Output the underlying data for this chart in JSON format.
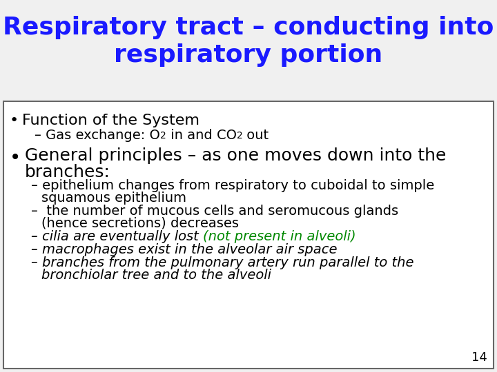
{
  "title_line1": "Respiratory tract – conducting into",
  "title_line2": "respiratory portion",
  "title_color": "#1a1aff",
  "title_fontsize": 26,
  "bg_color": "#f0f0f0",
  "box_bg_color": "#ffffff",
  "box_border_color": "#666666",
  "slide_number": "14",
  "bullet1_text": "Function of the System",
  "bullet1_fontsize": 16,
  "sub1_text": "– Gas exchange: O",
  "sub1_2": "2",
  "sub1_3": " in and CO",
  "sub1_4": "2",
  "sub1_5": " out",
  "sub_fontsize": 14,
  "sub_sub_fontsize": 10,
  "bullet2_line1": "•  General principles – as one moves down into the",
  "bullet2_line2": "   branches:",
  "bullet2_fontsize": 18,
  "sub2_text": "– epithelium changes from respiratory to cuboidal to simple\n    squamous epithelium",
  "sub3_text": "–  the number of mucous cells and seromucous glands\n    (hence secretions) decreases",
  "sub4a": "– ",
  "sub4b": "cilia are eventually lost ",
  "sub4c": "(not present in alveoli)",
  "sub4d": ")",
  "sub4_color_black": "#000000",
  "sub4_color_green": "#008800",
  "sub5a": "– ",
  "sub5b": "macrophages exist in the alveolar air space",
  "sub6a": "– ",
  "sub6b": "branches from the pulmonary artery run parallel to the\n    bronchiolar tree and to the alveoli",
  "italic_fontsize": 14
}
